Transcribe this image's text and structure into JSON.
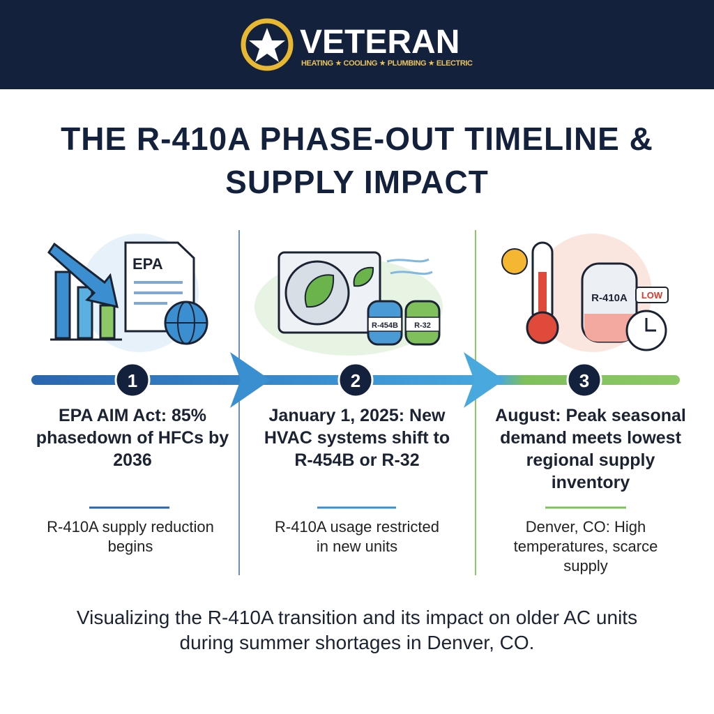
{
  "header": {
    "brand": "VETERAN",
    "tagline": "HEATING ★ COOLING ★ PLUMBING ★ ELECTRIC"
  },
  "title": "THE R-410A PHASE-OUT TIMELINE & SUPPLY IMPACT",
  "steps": [
    {
      "number": "1",
      "icon_label": "EPA",
      "heading": "EPA AIM Act: 85% phasedown of HFCs by 2036",
      "detail": "R-410A supply reduction begins"
    },
    {
      "number": "2",
      "icon_labels": [
        "R-454B",
        "R-32"
      ],
      "heading": "January 1, 2025: New HVAC systems shift to R-454B or R-32",
      "detail": "R-410A usage restricted in new units"
    },
    {
      "number": "3",
      "icon_labels": [
        "R-410A",
        "LOW"
      ],
      "heading": "August: Peak seasonal demand meets lowest regional supply inventory",
      "detail": "Denver, CO: High temperatures, scarce supply"
    }
  ],
  "footer": "Visualizing the R-410A transition and its impact on older AC units during summer shortages in Denver, CO."
}
